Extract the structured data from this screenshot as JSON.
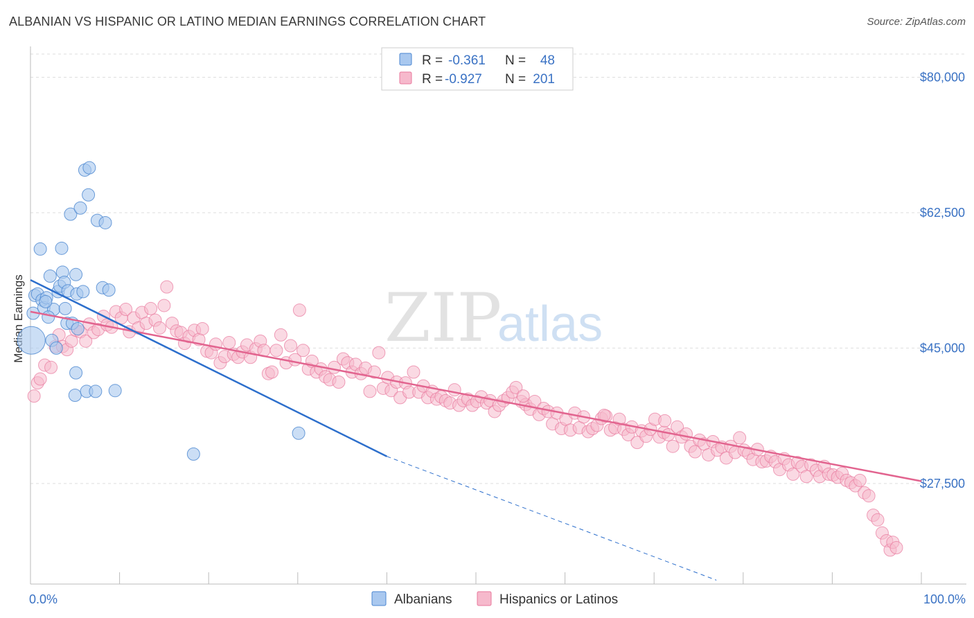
{
  "header": {
    "title": "ALBANIAN VS HISPANIC OR LATINO MEDIAN EARNINGS CORRELATION CHART",
    "source": "Source: ZipAtlas.com"
  },
  "watermark": {
    "part1": "ZIP",
    "part2": "atlas"
  },
  "legend_top": {
    "rows": [
      {
        "r_label": "R =",
        "r_value": "-0.361",
        "n_label": "N =",
        "n_value": "48"
      },
      {
        "r_label": "R =",
        "r_value": "-0.927",
        "n_label": "N =",
        "n_value": "201"
      }
    ]
  },
  "legend_bottom": {
    "items": [
      "Albanians",
      "Hispanics or Latinos"
    ]
  },
  "colors": {
    "albanian_fill": "#a9c8ef",
    "albanian_stroke": "#4a86d0",
    "albanian_line": "#2d6fcc",
    "hispanic_fill": "#f6b9cc",
    "hispanic_stroke": "#e8789c",
    "hispanic_line": "#e2648f",
    "axis_label": "#3a72c4",
    "grid": "#dddddd"
  },
  "chart_data": {
    "type": "scatter",
    "title": "ALBANIAN VS HISPANIC OR LATINO MEDIAN EARNINGS CORRELATION CHART",
    "xlabel": "",
    "ylabel": "Median Earnings",
    "xlim": [
      0,
      100
    ],
    "ylim": [
      14500,
      83000
    ],
    "x_tick_labels": [
      "0.0%",
      "100.0%"
    ],
    "y_ticks": [
      {
        "value": 27500,
        "label": "$27,500"
      },
      {
        "value": 45000,
        "label": "$45,000"
      },
      {
        "value": 62500,
        "label": "$62,500"
      },
      {
        "value": 80000,
        "label": "$80,000"
      }
    ],
    "grid": true,
    "legend_position": "top-center",
    "series": [
      {
        "name": "Albanians",
        "r": -0.361,
        "n": 48,
        "trend": {
          "x_start": 0,
          "y_start": 53800,
          "x_solid_end": 40,
          "y_solid_end": 31000,
          "x_dash_end": 77,
          "y_dash_end": 15000
        },
        "points": [
          [
            0.1,
            46000,
            "big"
          ],
          [
            0.3,
            49500
          ],
          [
            0.5,
            51800
          ],
          [
            0.8,
            52000
          ],
          [
            1.1,
            57800
          ],
          [
            1.3,
            51200
          ],
          [
            1.5,
            50200
          ],
          [
            1.8,
            51500
          ],
          [
            2.2,
            54300
          ],
          [
            2.4,
            46000
          ],
          [
            2.6,
            50000
          ],
          [
            2.9,
            45000
          ],
          [
            3.1,
            52300
          ],
          [
            3.3,
            53000
          ],
          [
            3.5,
            57900
          ],
          [
            3.6,
            54800
          ],
          [
            3.8,
            53500
          ],
          [
            4.1,
            48200
          ],
          [
            4.2,
            52400
          ],
          [
            4.5,
            62300
          ],
          [
            4.7,
            48200
          ],
          [
            5.1,
            54500
          ],
          [
            5.2,
            52000
          ],
          [
            5.3,
            47500
          ],
          [
            5.1,
            41800
          ],
          [
            5.0,
            38900
          ],
          [
            5.6,
            63100
          ],
          [
            5.9,
            52300
          ],
          [
            6.1,
            68000
          ],
          [
            6.3,
            39400
          ],
          [
            6.5,
            64800
          ],
          [
            6.6,
            68300
          ],
          [
            7.3,
            39400
          ],
          [
            7.5,
            61500
          ],
          [
            8.1,
            52800
          ],
          [
            8.4,
            61200
          ],
          [
            8.8,
            52500
          ],
          [
            9.5,
            39500
          ],
          [
            18.3,
            31300
          ],
          [
            30.1,
            34000
          ],
          [
            2.0,
            49000
          ],
          [
            1.7,
            51000
          ],
          [
            3.9,
            50100
          ]
        ]
      },
      {
        "name": "Hispanics or Latinos",
        "r": -0.927,
        "n": 201,
        "trend": {
          "x_start": 0,
          "y_start": 49700,
          "x_end": 100,
          "y_end": 27800
        },
        "points": [
          [
            0.4,
            38800
          ],
          [
            0.8,
            40500
          ],
          [
            1.1,
            41000
          ],
          [
            1.6,
            42800
          ],
          [
            2.3,
            42500
          ],
          [
            2.8,
            45200
          ],
          [
            3.2,
            46700
          ],
          [
            3.6,
            45200
          ],
          [
            4.1,
            44800
          ],
          [
            4.6,
            45900
          ],
          [
            5.1,
            47300
          ],
          [
            5.6,
            47100
          ],
          [
            6.2,
            45900
          ],
          [
            6.6,
            48100
          ],
          [
            7.1,
            47000
          ],
          [
            7.6,
            47400
          ],
          [
            8.2,
            49100
          ],
          [
            8.6,
            48000
          ],
          [
            9.1,
            47700
          ],
          [
            9.6,
            49700
          ],
          [
            10.2,
            48900
          ],
          [
            10.7,
            50000
          ],
          [
            11.1,
            47100
          ],
          [
            11.6,
            48900
          ],
          [
            12.1,
            47600
          ],
          [
            12.5,
            49600
          ],
          [
            13.0,
            48200
          ],
          [
            13.5,
            50100
          ],
          [
            14.0,
            48600
          ],
          [
            14.5,
            47600
          ],
          [
            15.0,
            50500
          ],
          [
            15.3,
            52900
          ],
          [
            15.9,
            48200
          ],
          [
            16.4,
            47200
          ],
          [
            16.9,
            47000
          ],
          [
            17.3,
            45600
          ],
          [
            17.8,
            46500
          ],
          [
            18.4,
            47300
          ],
          [
            18.9,
            46100
          ],
          [
            19.3,
            47500
          ],
          [
            19.8,
            44600
          ],
          [
            20.3,
            44400
          ],
          [
            20.8,
            45500
          ],
          [
            21.3,
            43100
          ],
          [
            21.8,
            43900
          ],
          [
            22.3,
            45700
          ],
          [
            22.8,
            44200
          ],
          [
            23.3,
            43800
          ],
          [
            23.8,
            44500
          ],
          [
            24.3,
            45400
          ],
          [
            24.7,
            43800
          ],
          [
            25.3,
            44900
          ],
          [
            25.8,
            45900
          ],
          [
            26.2,
            44700
          ],
          [
            26.7,
            41700
          ],
          [
            27.1,
            41900
          ],
          [
            27.6,
            44700
          ],
          [
            28.1,
            46700
          ],
          [
            28.7,
            43100
          ],
          [
            29.2,
            45300
          ],
          [
            29.7,
            43500
          ],
          [
            30.2,
            49900
          ],
          [
            30.6,
            44700
          ],
          [
            31.2,
            42300
          ],
          [
            31.6,
            43300
          ],
          [
            32.1,
            41900
          ],
          [
            32.6,
            42300
          ],
          [
            33.1,
            41300
          ],
          [
            33.6,
            40900
          ],
          [
            34.1,
            42500
          ],
          [
            34.6,
            40600
          ],
          [
            35.1,
            43600
          ],
          [
            35.6,
            43100
          ],
          [
            36.1,
            41900
          ],
          [
            36.5,
            42900
          ],
          [
            37.1,
            41700
          ],
          [
            37.6,
            42400
          ],
          [
            38.1,
            39400
          ],
          [
            38.6,
            41900
          ],
          [
            39.1,
            44400
          ],
          [
            39.6,
            39800
          ],
          [
            40.1,
            41200
          ],
          [
            40.5,
            39500
          ],
          [
            41.1,
            40600
          ],
          [
            41.5,
            38600
          ],
          [
            42.1,
            40500
          ],
          [
            42.5,
            39300
          ],
          [
            43.0,
            41900
          ],
          [
            43.6,
            39300
          ],
          [
            44.1,
            40100
          ],
          [
            44.6,
            38600
          ],
          [
            45.1,
            39400
          ],
          [
            45.6,
            38400
          ],
          [
            46.1,
            38700
          ],
          [
            46.6,
            38200
          ],
          [
            47.1,
            37900
          ],
          [
            47.6,
            39600
          ],
          [
            48.1,
            37600
          ],
          [
            48.6,
            38200
          ],
          [
            49.1,
            38400
          ],
          [
            49.6,
            37600
          ],
          [
            50.1,
            38100
          ],
          [
            50.6,
            38700
          ],
          [
            51.2,
            37900
          ],
          [
            51.6,
            38200
          ],
          [
            52.1,
            36800
          ],
          [
            52.6,
            37600
          ],
          [
            53.1,
            38200
          ],
          [
            53.6,
            38600
          ],
          [
            54.1,
            39300
          ],
          [
            54.5,
            39900
          ],
          [
            55.1,
            38100
          ],
          [
            55.6,
            37700
          ],
          [
            56.1,
            37100
          ],
          [
            56.6,
            38100
          ],
          [
            57.1,
            36400
          ],
          [
            57.6,
            37200
          ],
          [
            58.1,
            36800
          ],
          [
            58.6,
            35200
          ],
          [
            59.1,
            36600
          ],
          [
            59.6,
            34600
          ],
          [
            60.1,
            35800
          ],
          [
            60.6,
            34400
          ],
          [
            61.1,
            36600
          ],
          [
            61.6,
            34700
          ],
          [
            62.1,
            36100
          ],
          [
            62.6,
            34200
          ],
          [
            63.1,
            34600
          ],
          [
            63.6,
            35000
          ],
          [
            64.1,
            35900
          ],
          [
            64.6,
            36200
          ],
          [
            65.1,
            34400
          ],
          [
            65.6,
            34700
          ],
          [
            66.1,
            35800
          ],
          [
            66.6,
            34500
          ],
          [
            67.1,
            33800
          ],
          [
            67.5,
            34800
          ],
          [
            68.1,
            32800
          ],
          [
            68.6,
            34300
          ],
          [
            69.1,
            33600
          ],
          [
            69.6,
            34500
          ],
          [
            70.1,
            35800
          ],
          [
            70.6,
            33500
          ],
          [
            71.1,
            34100
          ],
          [
            71.6,
            33800
          ],
          [
            72.1,
            32300
          ],
          [
            72.6,
            34800
          ],
          [
            73.1,
            33500
          ],
          [
            73.6,
            33900
          ],
          [
            74.1,
            32300
          ],
          [
            74.6,
            31600
          ],
          [
            75.1,
            33100
          ],
          [
            75.6,
            32600
          ],
          [
            76.1,
            31200
          ],
          [
            76.6,
            32900
          ],
          [
            77.1,
            31800
          ],
          [
            77.6,
            32200
          ],
          [
            78.1,
            30800
          ],
          [
            78.6,
            32300
          ],
          [
            79.1,
            31500
          ],
          [
            79.6,
            33400
          ],
          [
            80.1,
            31800
          ],
          [
            80.6,
            31400
          ],
          [
            81.1,
            30600
          ],
          [
            81.6,
            31900
          ],
          [
            82.1,
            30300
          ],
          [
            82.6,
            30400
          ],
          [
            83.1,
            31000
          ],
          [
            83.6,
            30300
          ],
          [
            84.1,
            29300
          ],
          [
            84.6,
            30700
          ],
          [
            85.1,
            29900
          ],
          [
            85.6,
            28700
          ],
          [
            86.1,
            30200
          ],
          [
            86.6,
            29700
          ],
          [
            87.1,
            28400
          ],
          [
            87.6,
            29900
          ],
          [
            88.2,
            29200
          ],
          [
            88.6,
            28400
          ],
          [
            89.1,
            29700
          ],
          [
            89.6,
            28700
          ],
          [
            90.1,
            28600
          ],
          [
            90.6,
            28300
          ],
          [
            91.1,
            28800
          ],
          [
            91.6,
            27900
          ],
          [
            92.1,
            27600
          ],
          [
            92.6,
            27200
          ],
          [
            93.1,
            27900
          ],
          [
            93.6,
            26300
          ],
          [
            94.1,
            25900
          ],
          [
            94.6,
            23400
          ],
          [
            95.1,
            22800
          ],
          [
            95.6,
            21100
          ],
          [
            96.1,
            20100
          ],
          [
            96.5,
            18900
          ],
          [
            96.8,
            19900
          ],
          [
            97.2,
            19200
          ],
          [
            64.4,
            36300
          ],
          [
            55.3,
            38800
          ],
          [
            71.2,
            35600
          ]
        ]
      }
    ]
  }
}
